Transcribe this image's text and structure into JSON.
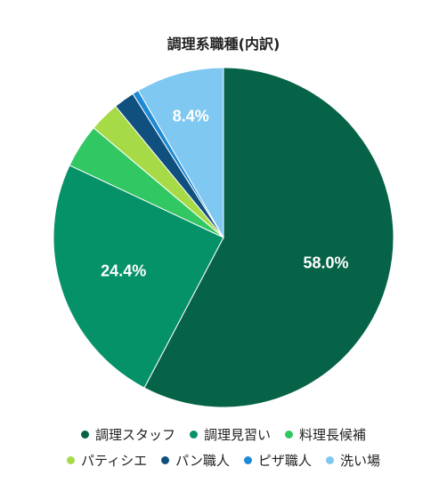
{
  "chart_data": {
    "type": "pie",
    "title": "調理系職種(内訳)",
    "categories": [
      "調理スタッフ",
      "調理見習い",
      "料理長候補",
      "パティシエ",
      "パン職人",
      "ピザ職人",
      "洗い場"
    ],
    "values": [
      58.0,
      24.4,
      4.2,
      2.9,
      2.0,
      0.6,
      8.4
    ],
    "data_labels": [
      "58.0%",
      "24.4%",
      "",
      "",
      "",
      "",
      "8.4%"
    ],
    "colors": [
      "#066347",
      "#069268",
      "#31c763",
      "#a6da46",
      "#0f507e",
      "#1c8ad5",
      "#7ec8f1"
    ],
    "legend_position": "bottom",
    "start_angle_deg": 0,
    "direction": "clockwise"
  }
}
